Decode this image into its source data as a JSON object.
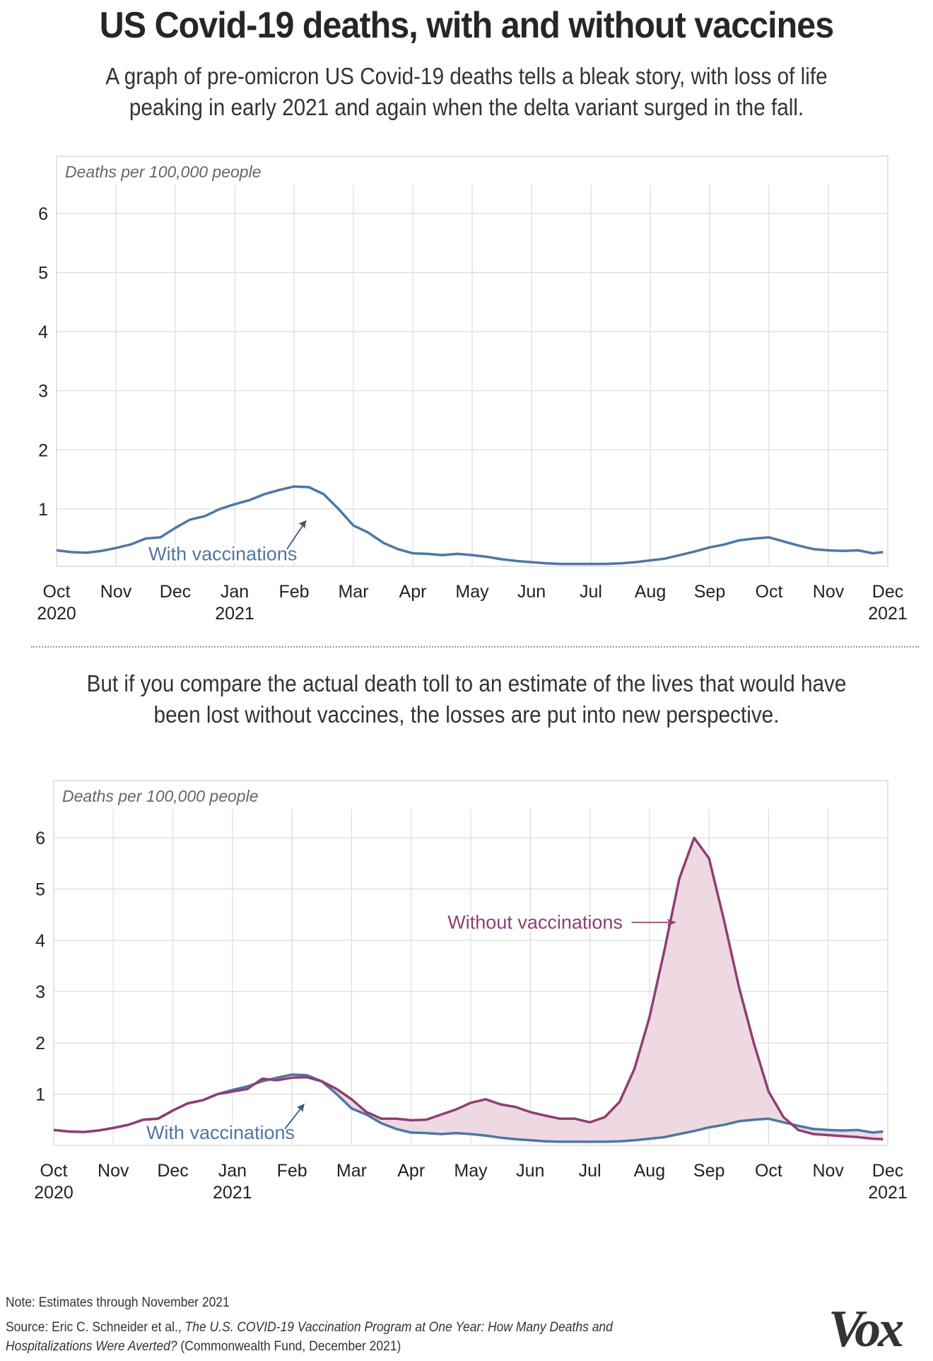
{
  "header": {
    "title": "US Covid-19 deaths, with and without vaccines",
    "dek_top": "A graph of pre-omicron US Covid-19 deaths tells a bleak story, with loss of life peaking in early 2021 and again when the delta variant surged in the fall.",
    "dek_bottom": "But if you compare the actual death toll to an estimate of the lives that would have been lost without vaccines, the losses are put into new perspective."
  },
  "footer": {
    "note": "Note: Estimates through November 2021",
    "source_prefix": "Source: Eric C. Schneider et al., ",
    "source_title": "The U.S. COVID-19 Vaccination Program at One Year: How Many Deaths and Hospitalizations Were Averted?",
    "source_suffix": " (Commonwealth Fund, December 2021)",
    "logo": "Vox"
  },
  "colors": {
    "with": "#4e77a3",
    "without": "#8f3f72",
    "fill": "#ecd5df",
    "grid": "#dcdcdc",
    "text": "#222222",
    "label_gray": "#666666"
  },
  "chart_data": [
    {
      "type": "line",
      "title": "",
      "ylabel": "Deaths per 100,000 people",
      "xlabel": "",
      "ylim": [
        0,
        6.5
      ],
      "yticks": [
        "1",
        "2",
        "3",
        "4",
        "5",
        "6"
      ],
      "xticks": [
        {
          "label": "Oct",
          "sub": "2020"
        },
        {
          "label": "Nov",
          "sub": ""
        },
        {
          "label": "Dec",
          "sub": ""
        },
        {
          "label": "Jan",
          "sub": "2021"
        },
        {
          "label": "Feb",
          "sub": ""
        },
        {
          "label": "Mar",
          "sub": ""
        },
        {
          "label": "Apr",
          "sub": ""
        },
        {
          "label": "May",
          "sub": ""
        },
        {
          "label": "Jun",
          "sub": ""
        },
        {
          "label": "Jul",
          "sub": ""
        },
        {
          "label": "Aug",
          "sub": ""
        },
        {
          "label": "Sep",
          "sub": ""
        },
        {
          "label": "Oct",
          "sub": ""
        },
        {
          "label": "Nov",
          "sub": ""
        },
        {
          "label": "Dec",
          "sub": "2021"
        }
      ],
      "x_unit": "months since Oct 1, 2020",
      "grid": true,
      "annotations": [
        {
          "text": "With vaccinations",
          "series": "With vaccinations"
        }
      ],
      "series": [
        {
          "name": "With vaccinations",
          "x": [
            0,
            0.25,
            0.5,
            0.75,
            1,
            1.25,
            1.5,
            1.75,
            2,
            2.25,
            2.5,
            2.75,
            3,
            3.25,
            3.5,
            3.75,
            4,
            4.25,
            4.5,
            4.75,
            5,
            5.25,
            5.5,
            5.75,
            6,
            6.25,
            6.5,
            6.75,
            7,
            7.25,
            7.5,
            7.75,
            8,
            8.25,
            8.5,
            8.75,
            9,
            9.25,
            9.5,
            9.75,
            10,
            10.25,
            10.5,
            10.75,
            11,
            11.25,
            11.5,
            11.75,
            12,
            12.25,
            12.5,
            12.75,
            13,
            13.25,
            13.5,
            13.75,
            13.92
          ],
          "values": [
            0.3,
            0.27,
            0.26,
            0.29,
            0.34,
            0.4,
            0.5,
            0.52,
            0.68,
            0.82,
            0.88,
            1.0,
            1.08,
            1.15,
            1.25,
            1.32,
            1.38,
            1.37,
            1.25,
            1.0,
            0.72,
            0.6,
            0.43,
            0.32,
            0.25,
            0.24,
            0.22,
            0.24,
            0.22,
            0.19,
            0.15,
            0.12,
            0.1,
            0.08,
            0.07,
            0.07,
            0.07,
            0.07,
            0.08,
            0.1,
            0.13,
            0.16,
            0.22,
            0.28,
            0.35,
            0.4,
            0.47,
            0.5,
            0.52,
            0.45,
            0.38,
            0.32,
            0.3,
            0.29,
            0.3,
            0.25,
            0.27
          ]
        }
      ]
    },
    {
      "type": "area",
      "title": "",
      "ylabel": "Deaths per 100,000 people",
      "xlabel": "",
      "ylim": [
        0,
        6.5
      ],
      "yticks": [
        "1",
        "2",
        "3",
        "4",
        "5",
        "6"
      ],
      "xticks": [
        {
          "label": "Oct",
          "sub": "2020"
        },
        {
          "label": "Nov",
          "sub": ""
        },
        {
          "label": "Dec",
          "sub": ""
        },
        {
          "label": "Jan",
          "sub": "2021"
        },
        {
          "label": "Feb",
          "sub": ""
        },
        {
          "label": "Mar",
          "sub": ""
        },
        {
          "label": "Apr",
          "sub": ""
        },
        {
          "label": "May",
          "sub": ""
        },
        {
          "label": "Jun",
          "sub": ""
        },
        {
          "label": "Jul",
          "sub": ""
        },
        {
          "label": "Aug",
          "sub": ""
        },
        {
          "label": "Sep",
          "sub": ""
        },
        {
          "label": "Oct",
          "sub": ""
        },
        {
          "label": "Nov",
          "sub": ""
        },
        {
          "label": "Dec",
          "sub": "2021"
        }
      ],
      "x_unit": "months since Oct 1, 2020",
      "grid": true,
      "fill_between": [
        "With vaccinations",
        "Without vaccinations"
      ],
      "annotations": [
        {
          "text": "With vaccinations",
          "series": "With vaccinations"
        },
        {
          "text": "Without vaccinations",
          "series": "Without vaccinations"
        }
      ],
      "series": [
        {
          "name": "With vaccinations",
          "x": [
            0,
            0.25,
            0.5,
            0.75,
            1,
            1.25,
            1.5,
            1.75,
            2,
            2.25,
            2.5,
            2.75,
            3,
            3.25,
            3.5,
            3.75,
            4,
            4.25,
            4.5,
            4.75,
            5,
            5.25,
            5.5,
            5.75,
            6,
            6.25,
            6.5,
            6.75,
            7,
            7.25,
            7.5,
            7.75,
            8,
            8.25,
            8.5,
            8.75,
            9,
            9.25,
            9.5,
            9.75,
            10,
            10.25,
            10.5,
            10.75,
            11,
            11.25,
            11.5,
            11.75,
            12,
            12.25,
            12.5,
            12.75,
            13,
            13.25,
            13.5,
            13.75,
            13.92
          ],
          "values": [
            0.3,
            0.27,
            0.26,
            0.29,
            0.34,
            0.4,
            0.5,
            0.52,
            0.68,
            0.82,
            0.88,
            1.0,
            1.08,
            1.15,
            1.25,
            1.32,
            1.38,
            1.37,
            1.25,
            1.0,
            0.72,
            0.6,
            0.43,
            0.32,
            0.25,
            0.24,
            0.22,
            0.24,
            0.22,
            0.19,
            0.15,
            0.12,
            0.1,
            0.08,
            0.07,
            0.07,
            0.07,
            0.07,
            0.08,
            0.1,
            0.13,
            0.16,
            0.22,
            0.28,
            0.35,
            0.4,
            0.47,
            0.5,
            0.52,
            0.45,
            0.38,
            0.32,
            0.3,
            0.29,
            0.3,
            0.25,
            0.27
          ]
        },
        {
          "name": "Without vaccinations",
          "x": [
            0,
            0.25,
            0.5,
            0.75,
            1,
            1.25,
            1.5,
            1.75,
            2,
            2.25,
            2.5,
            2.75,
            3,
            3.25,
            3.5,
            3.75,
            4,
            4.25,
            4.5,
            4.75,
            5,
            5.25,
            5.5,
            5.75,
            6,
            6.25,
            6.5,
            6.75,
            7,
            7.25,
            7.5,
            7.75,
            8,
            8.25,
            8.5,
            8.75,
            9,
            9.25,
            9.5,
            9.75,
            10,
            10.25,
            10.5,
            10.75,
            11,
            11.25,
            11.5,
            11.75,
            12,
            12.25,
            12.5,
            12.75,
            13,
            13.25,
            13.5,
            13.75,
            13.92
          ],
          "values": [
            0.3,
            0.27,
            0.26,
            0.29,
            0.34,
            0.4,
            0.5,
            0.52,
            0.68,
            0.82,
            0.88,
            1.0,
            1.05,
            1.1,
            1.3,
            1.27,
            1.32,
            1.33,
            1.25,
            1.1,
            0.9,
            0.65,
            0.52,
            0.52,
            0.49,
            0.5,
            0.6,
            0.7,
            0.83,
            0.9,
            0.8,
            0.75,
            0.65,
            0.58,
            0.52,
            0.52,
            0.45,
            0.55,
            0.85,
            1.5,
            2.5,
            3.8,
            5.2,
            6.0,
            5.6,
            4.4,
            3.1,
            2.0,
            1.05,
            0.55,
            0.3,
            0.22,
            0.2,
            0.18,
            0.16,
            0.13,
            0.12
          ]
        }
      ]
    }
  ]
}
